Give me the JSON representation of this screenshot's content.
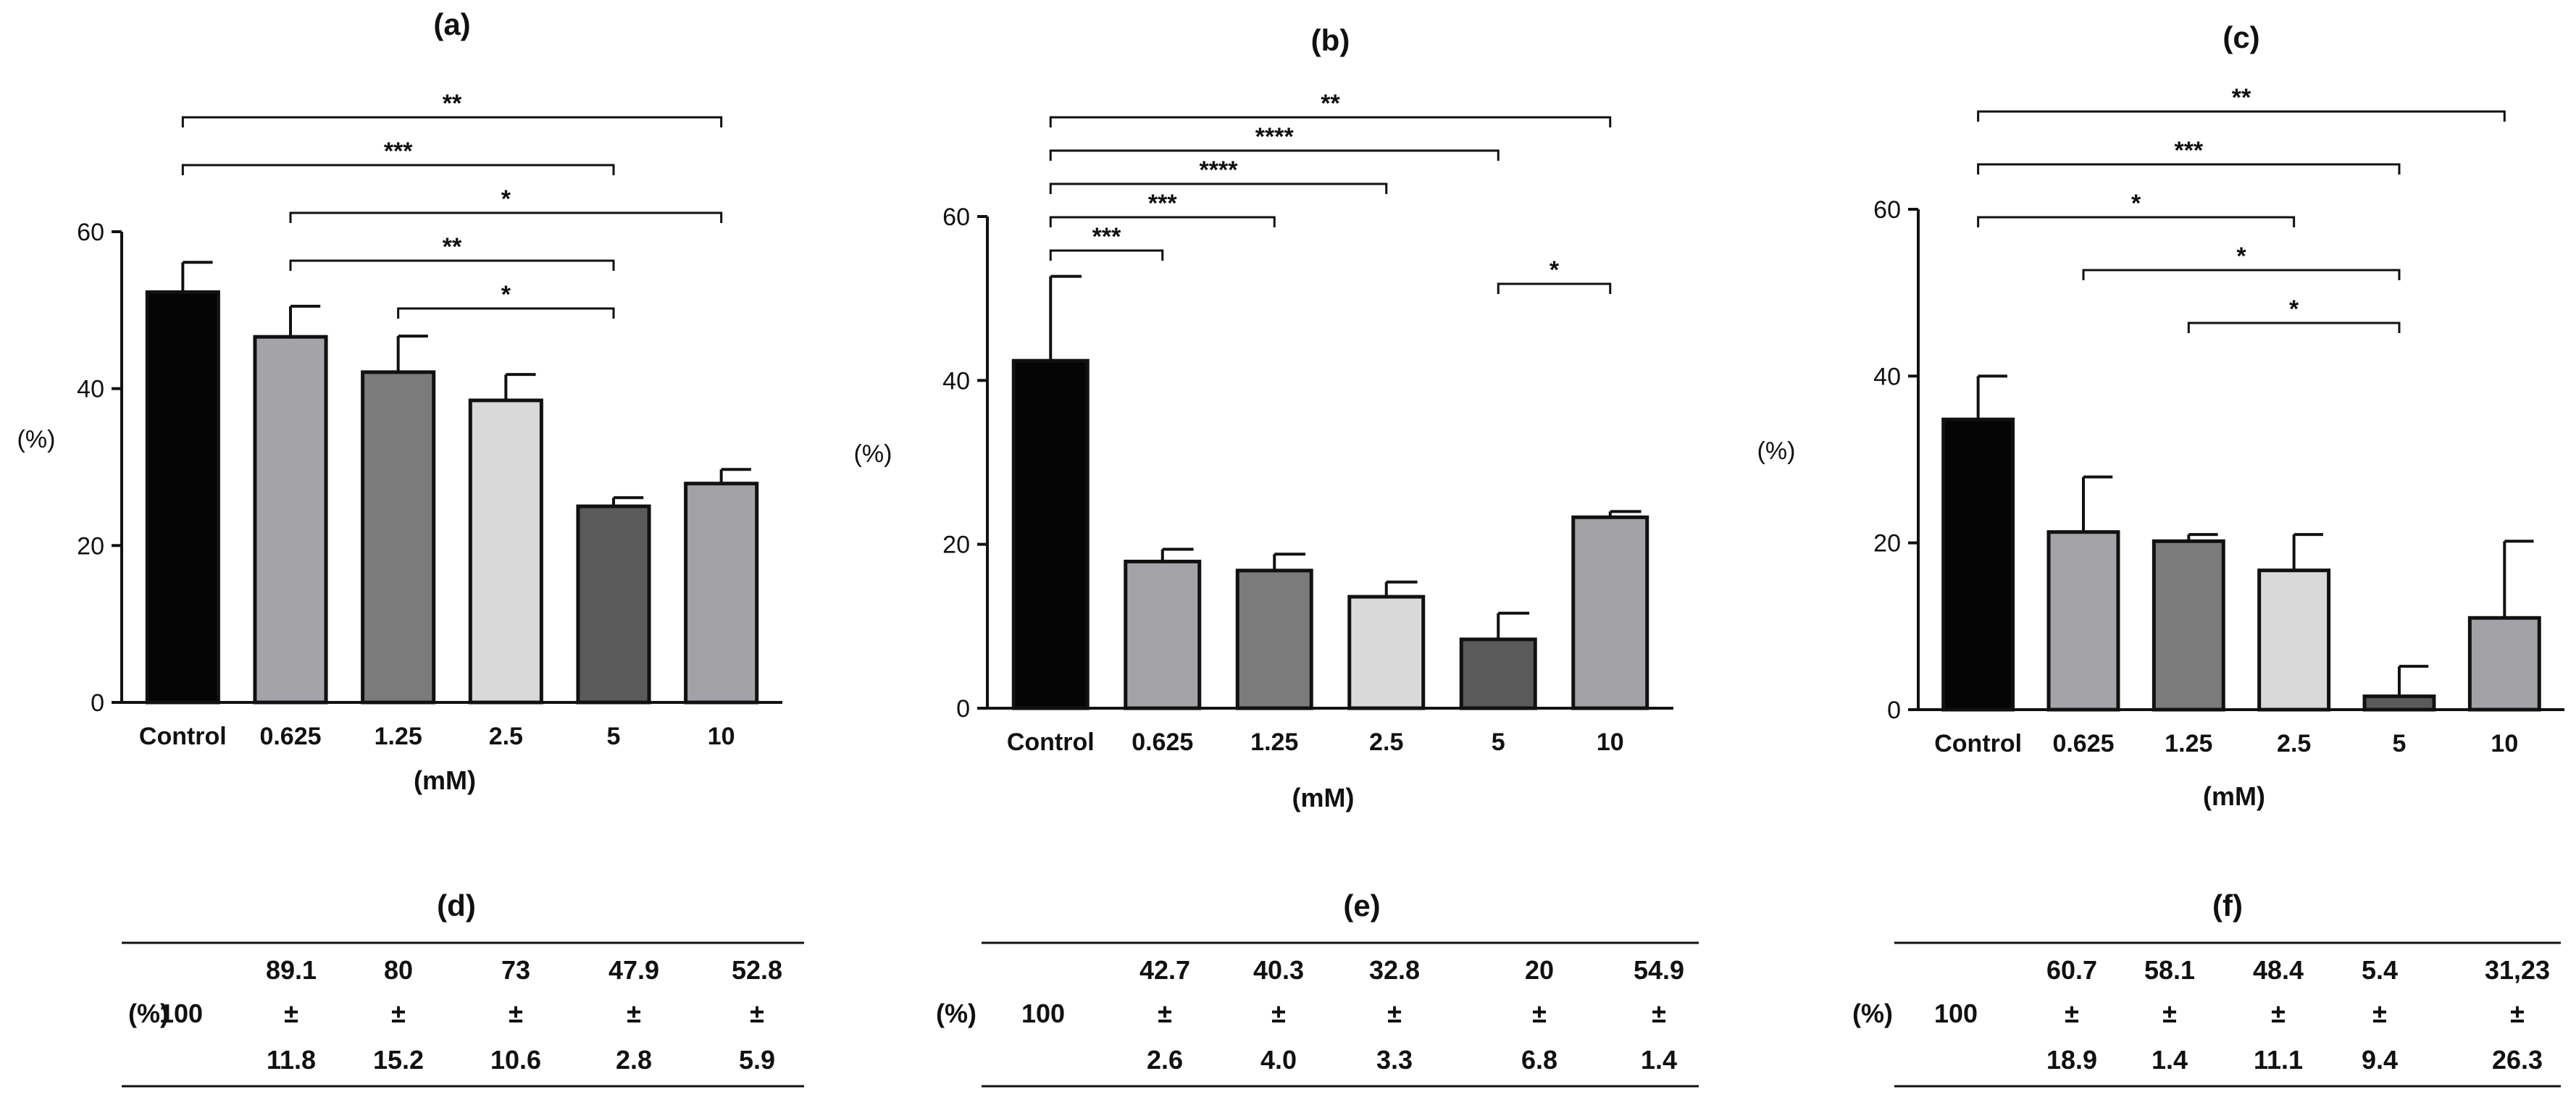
{
  "figure": {
    "y_unit_label": "(%)",
    "x_unit_label": "(mM)",
    "categories": [
      "Control",
      "0.625",
      "1.25",
      "2.5",
      "5",
      "10"
    ],
    "bar_colors": [
      "#050505",
      "#a3a3a8",
      "#7b7b7b",
      "#d9d9d9",
      "#5a5a5a",
      "#a2a2a6"
    ]
  },
  "chart_data": [
    {
      "id": "a",
      "type": "bar",
      "title": "(a)",
      "categories": [
        "Control",
        "0.625",
        "1.25",
        "2.5",
        "5",
        "10"
      ],
      "values": [
        52.3,
        46.6,
        42.1,
        38.5,
        25.0,
        27.9
      ],
      "errors": [
        3.8,
        3.9,
        4.6,
        3.3,
        1.1,
        1.8
      ],
      "xlabel": "(mM)",
      "ylabel": "(%)",
      "ylim": [
        0,
        60
      ],
      "yticks": [
        "0",
        "20",
        "40",
        "60"
      ],
      "significance": [
        {
          "from": 0,
          "to": 5,
          "label": "**"
        },
        {
          "from": 0,
          "to": 4,
          "label": "***"
        },
        {
          "from": 1,
          "to": 5,
          "label": "*"
        },
        {
          "from": 1,
          "to": 4,
          "label": "**"
        },
        {
          "from": 2,
          "to": 4,
          "label": "*"
        }
      ]
    },
    {
      "id": "b",
      "type": "bar",
      "title": "(b)",
      "categories": [
        "Control",
        "0.625",
        "1.25",
        "2.5",
        "5",
        "10"
      ],
      "values": [
        42.4,
        17.9,
        16.8,
        13.6,
        8.4,
        23.3
      ],
      "errors": [
        10.3,
        1.5,
        2.0,
        1.8,
        3.2,
        0.7
      ],
      "xlabel": "(mM)",
      "ylabel": "(%)",
      "ylim": [
        0,
        60
      ],
      "yticks": [
        "0",
        "20",
        "40",
        "60"
      ],
      "significance": [
        {
          "from": 0,
          "to": 5,
          "label": "**"
        },
        {
          "from": 0,
          "to": 4,
          "label": "****"
        },
        {
          "from": 0,
          "to": 3,
          "label": "****"
        },
        {
          "from": 0,
          "to": 2,
          "label": "***"
        },
        {
          "from": 0,
          "to": 1,
          "label": "***"
        },
        {
          "from": 4,
          "to": 5,
          "label": "*"
        }
      ]
    },
    {
      "id": "c",
      "type": "bar",
      "title": "(c)",
      "categories": [
        "Control",
        "0.625",
        "1.25",
        "2.5",
        "5",
        "10"
      ],
      "values": [
        34.8,
        21.3,
        20.2,
        16.7,
        1.6,
        11.0
      ],
      "errors": [
        5.2,
        6.6,
        0.8,
        4.3,
        3.6,
        9.2
      ],
      "xlabel": "(mM)",
      "ylabel": "(%)",
      "ylim": [
        0,
        60
      ],
      "yticks": [
        "0",
        "20",
        "40",
        "60"
      ],
      "significance": [
        {
          "from": 0,
          "to": 5,
          "label": "**"
        },
        {
          "from": 0,
          "to": 4,
          "label": "***"
        },
        {
          "from": 0,
          "to": 3,
          "label": "*"
        },
        {
          "from": 1,
          "to": 4,
          "label": "*"
        },
        {
          "from": 2,
          "to": 4,
          "label": "*"
        }
      ]
    }
  ],
  "tables": [
    {
      "id": "d",
      "title": "(d)",
      "row_label": "(%)",
      "control": "100",
      "pm": "±",
      "means": [
        "89.1",
        "80",
        "73",
        "47.9",
        "52.8"
      ],
      "sds": [
        "11.8",
        "15.2",
        "10.6",
        "2.8",
        "5.9"
      ]
    },
    {
      "id": "e",
      "title": "(e)",
      "row_label": "(%)",
      "control": "100",
      "pm": "±",
      "means": [
        "42.7",
        "40.3",
        "32.8",
        "20",
        "54.9"
      ],
      "sds": [
        "2.6",
        "4.0",
        "3.3",
        "6.8",
        "1.4"
      ]
    },
    {
      "id": "f",
      "title": "(f)",
      "row_label": "(%)",
      "control": "100",
      "pm": "±",
      "means": [
        "60.7",
        "58.1",
        "48.4",
        "5.4",
        "31,23"
      ],
      "sds": [
        "18.9",
        "1.4",
        "11.1",
        "9.4",
        "26.3"
      ]
    }
  ]
}
